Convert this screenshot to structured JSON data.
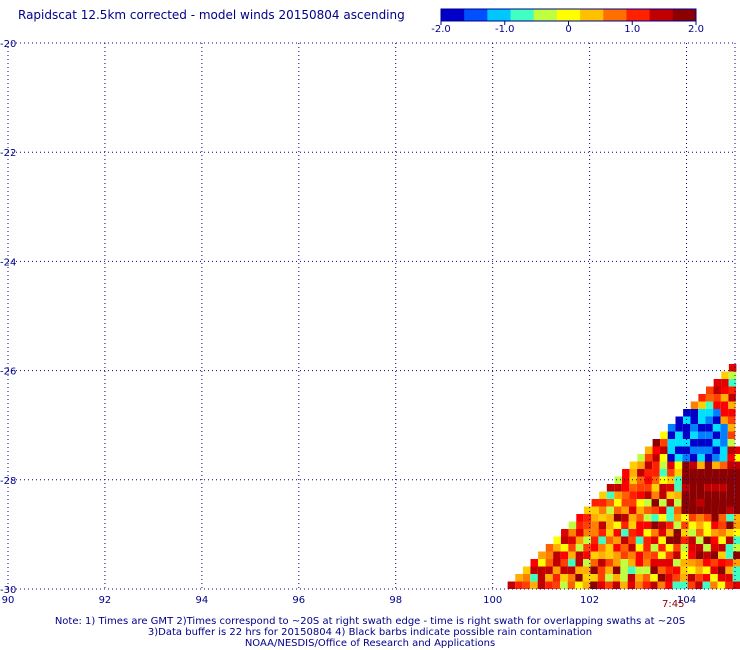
{
  "title": "Rapidscat 12.5km corrected - model winds 20150804 ascending",
  "colorbar": {
    "ticks": [
      "-2.0",
      "-1.0",
      "0",
      "1.0",
      "2.0"
    ],
    "tick_values": [
      -2.0,
      -1.0,
      0,
      1.0,
      2.0
    ],
    "range": [
      -2.0,
      2.0
    ],
    "colors": [
      "#0000c8",
      "#0050ff",
      "#00c8ff",
      "#40ffc0",
      "#c0ff40",
      "#ffff00",
      "#ffc000",
      "#ff7000",
      "#ff2000",
      "#c00000",
      "#8b0000"
    ]
  },
  "map": {
    "lon_range": [
      90,
      105
    ],
    "lat_range": [
      -30,
      -20
    ],
    "lon_ticks": [
      "90",
      "92",
      "94",
      "96",
      "98",
      "100",
      "102",
      "104"
    ],
    "lon_tick_values": [
      90,
      92,
      94,
      96,
      98,
      100,
      102,
      104
    ],
    "lat_ticks": [
      "-20",
      "-22",
      "-24",
      "-26",
      "-28",
      "-30"
    ],
    "lat_tick_values": [
      -20,
      -22,
      -24,
      -26,
      -28,
      -30
    ],
    "grid": "dotted",
    "swath_time": "7:45",
    "swath_time_lon": 103.7
  },
  "notes": {
    "line1": "Note: 1) Times are GMT 2)Times correspond to ~20S at right swath edge - time is right swath for overlapping swaths at ~20S",
    "line2": "3)Data buffer is 22 hrs for 20150804 4) Black barbs indicate possible rain contamination",
    "line3": "NOAA/NESDIS/Office of Research and Applications"
  }
}
